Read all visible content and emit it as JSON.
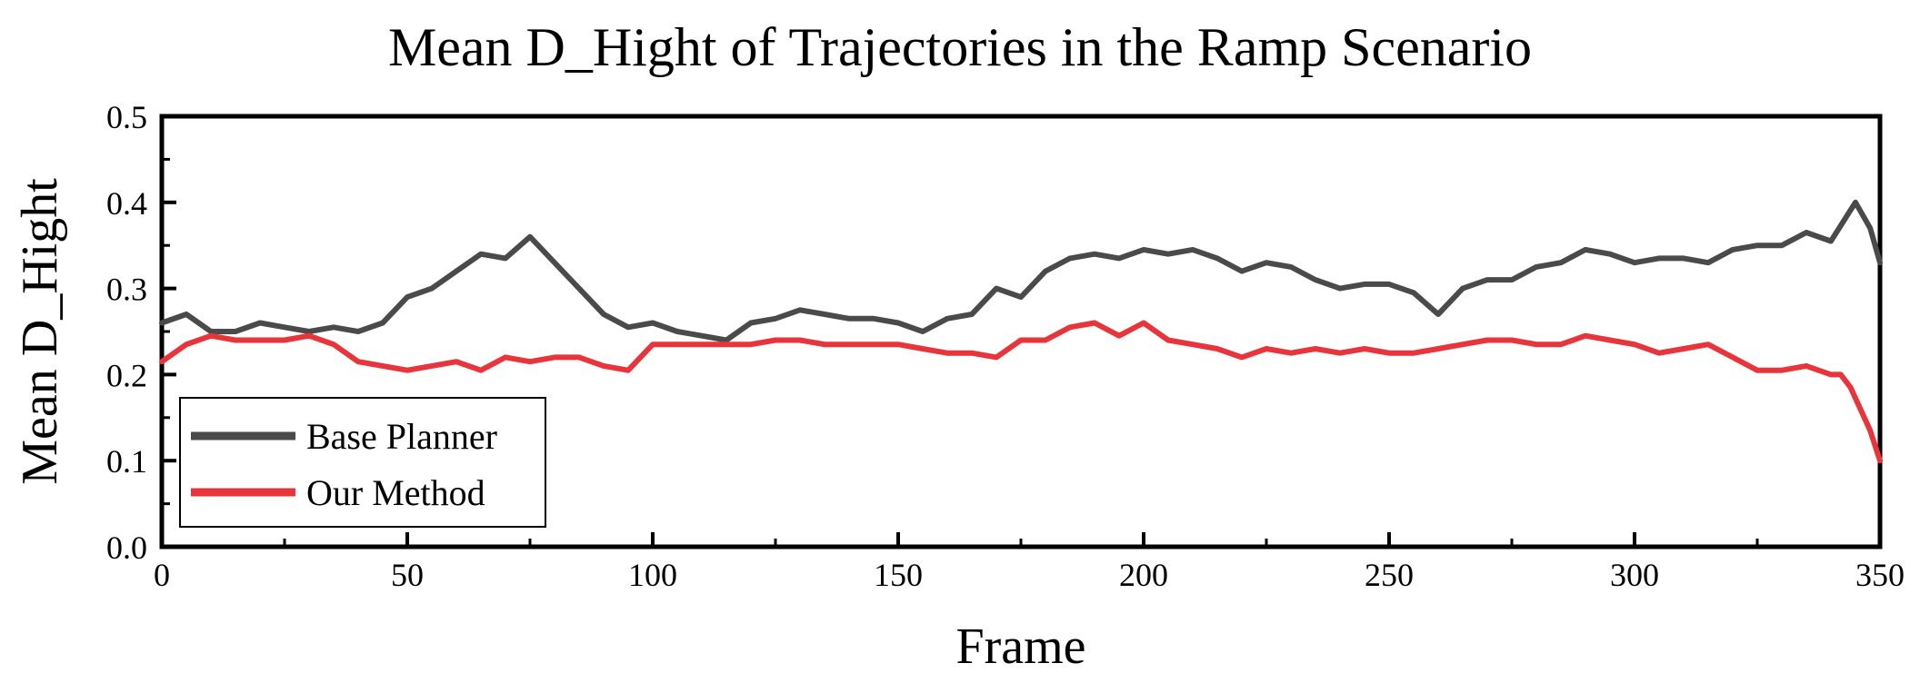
{
  "chart_data": {
    "type": "line",
    "title": "Mean D_Hight of Trajectories in the Ramp Scenario",
    "xlabel": "Frame",
    "ylabel": "Mean D_Hight",
    "xlim": [
      0,
      350
    ],
    "ylim": [
      0,
      0.5
    ],
    "xticks": [
      0,
      50,
      100,
      150,
      200,
      250,
      300,
      350
    ],
    "yticks": [
      0.0,
      0.1,
      0.2,
      0.3,
      0.4,
      0.5
    ],
    "xtick_labels": [
      "0",
      "50",
      "100",
      "150",
      "200",
      "250",
      "300",
      "350"
    ],
    "ytick_labels": [
      "0.0",
      "0.1",
      "0.2",
      "0.3",
      "0.4",
      "0.5"
    ],
    "grid": false,
    "legend_position": "lower-left",
    "series": [
      {
        "name": "Base Planner",
        "color": "#4a4a4a",
        "x": [
          0,
          5,
          10,
          15,
          20,
          25,
          30,
          35,
          40,
          45,
          50,
          55,
          60,
          65,
          70,
          75,
          80,
          85,
          90,
          95,
          100,
          105,
          110,
          115,
          120,
          125,
          130,
          135,
          140,
          145,
          150,
          155,
          160,
          165,
          170,
          175,
          180,
          185,
          190,
          195,
          200,
          205,
          210,
          215,
          220,
          225,
          230,
          235,
          240,
          245,
          250,
          255,
          260,
          265,
          270,
          275,
          280,
          285,
          290,
          295,
          300,
          305,
          310,
          315,
          320,
          325,
          330,
          335,
          340,
          345,
          348,
          350
        ],
        "values": [
          0.26,
          0.27,
          0.25,
          0.25,
          0.26,
          0.255,
          0.25,
          0.255,
          0.25,
          0.26,
          0.29,
          0.3,
          0.32,
          0.34,
          0.335,
          0.36,
          0.33,
          0.3,
          0.27,
          0.255,
          0.26,
          0.25,
          0.245,
          0.24,
          0.26,
          0.265,
          0.275,
          0.27,
          0.265,
          0.265,
          0.26,
          0.25,
          0.265,
          0.27,
          0.3,
          0.29,
          0.32,
          0.335,
          0.34,
          0.335,
          0.345,
          0.34,
          0.345,
          0.335,
          0.32,
          0.33,
          0.325,
          0.31,
          0.3,
          0.305,
          0.305,
          0.295,
          0.27,
          0.3,
          0.31,
          0.31,
          0.325,
          0.33,
          0.345,
          0.34,
          0.33,
          0.335,
          0.335,
          0.33,
          0.345,
          0.35,
          0.35,
          0.365,
          0.355,
          0.4,
          0.37,
          0.33
        ]
      },
      {
        "name": "Our Method",
        "color": "#e8343b",
        "x": [
          0,
          5,
          10,
          15,
          20,
          25,
          30,
          35,
          40,
          45,
          50,
          55,
          60,
          65,
          70,
          75,
          80,
          85,
          90,
          95,
          100,
          105,
          110,
          115,
          120,
          125,
          130,
          135,
          140,
          145,
          150,
          155,
          160,
          165,
          170,
          175,
          180,
          185,
          190,
          195,
          200,
          205,
          210,
          215,
          220,
          225,
          230,
          235,
          240,
          245,
          250,
          255,
          260,
          265,
          270,
          275,
          280,
          285,
          290,
          295,
          300,
          305,
          310,
          315,
          320,
          325,
          330,
          335,
          340,
          342,
          344,
          346,
          348,
          350
        ],
        "values": [
          0.215,
          0.235,
          0.245,
          0.24,
          0.24,
          0.24,
          0.245,
          0.235,
          0.215,
          0.21,
          0.205,
          0.21,
          0.215,
          0.205,
          0.22,
          0.215,
          0.22,
          0.22,
          0.21,
          0.205,
          0.235,
          0.235,
          0.235,
          0.235,
          0.235,
          0.24,
          0.24,
          0.235,
          0.235,
          0.235,
          0.235,
          0.23,
          0.225,
          0.225,
          0.22,
          0.24,
          0.24,
          0.255,
          0.26,
          0.245,
          0.26,
          0.24,
          0.235,
          0.23,
          0.22,
          0.23,
          0.225,
          0.23,
          0.225,
          0.23,
          0.225,
          0.225,
          0.23,
          0.235,
          0.24,
          0.24,
          0.235,
          0.235,
          0.245,
          0.24,
          0.235,
          0.225,
          0.23,
          0.235,
          0.22,
          0.205,
          0.205,
          0.21,
          0.2,
          0.2,
          0.185,
          0.16,
          0.135,
          0.1
        ]
      }
    ]
  }
}
